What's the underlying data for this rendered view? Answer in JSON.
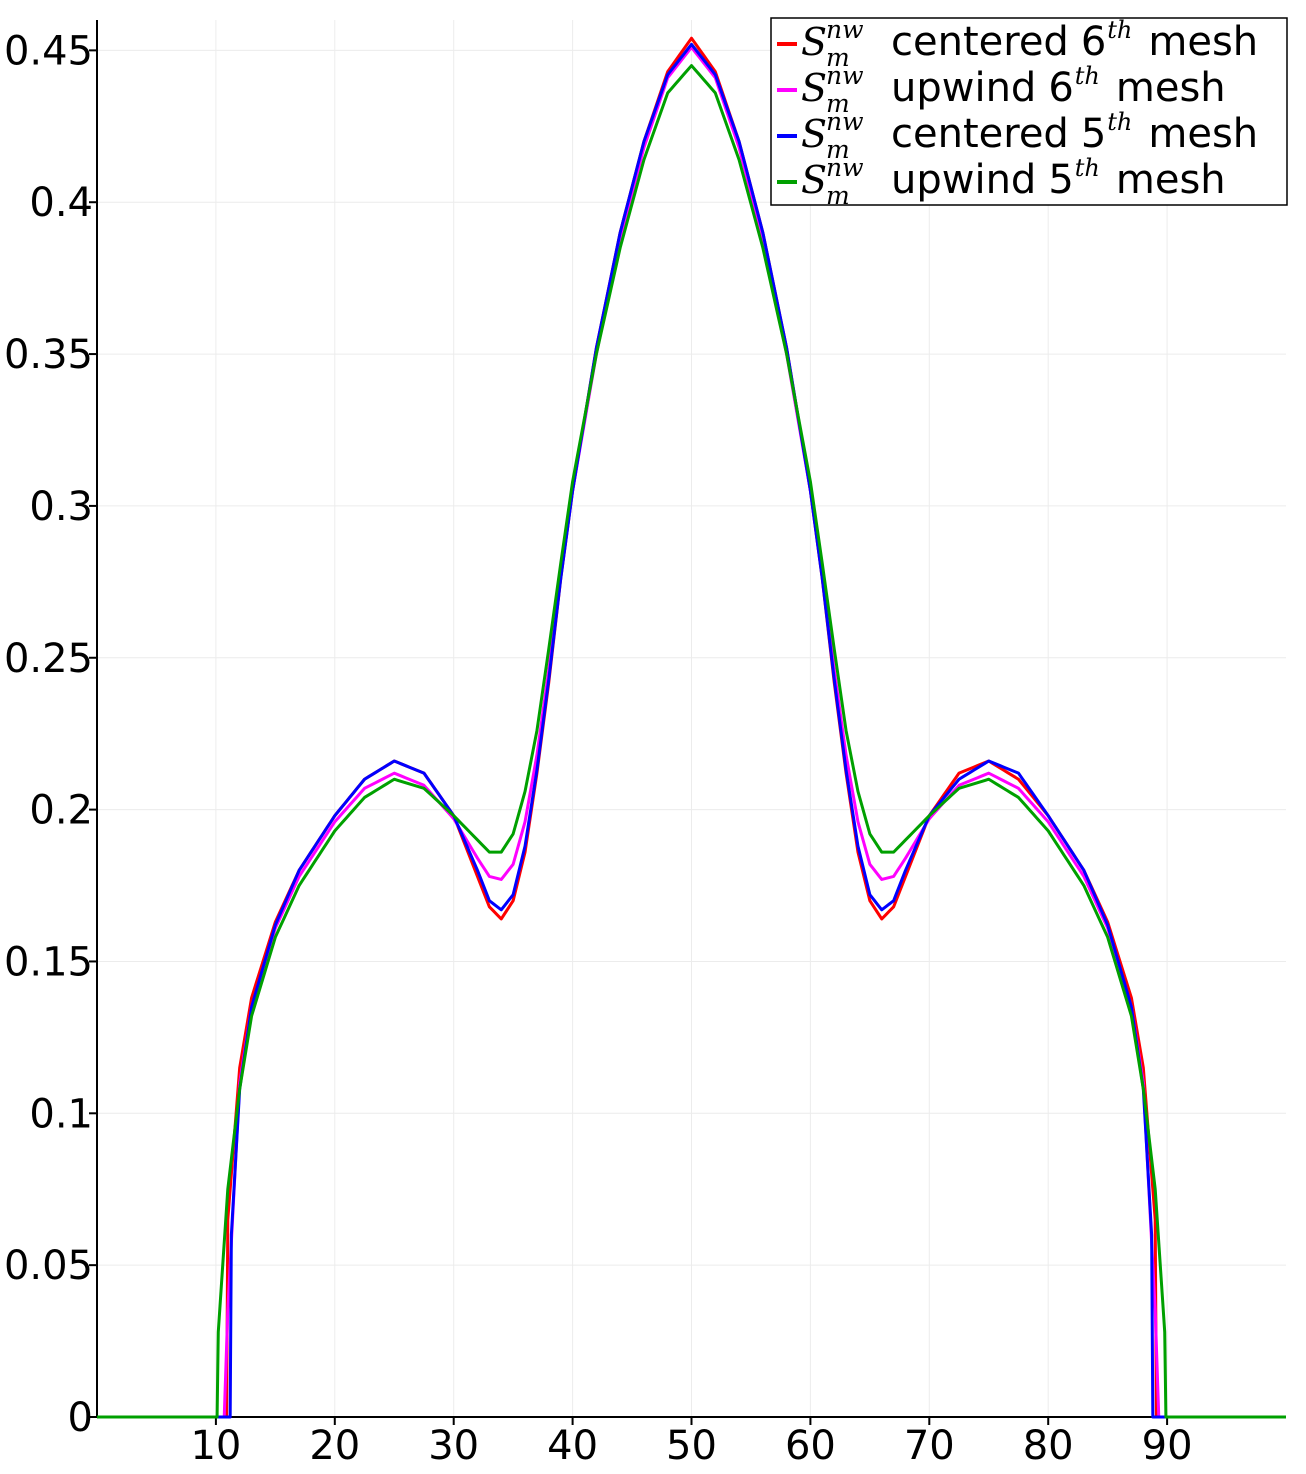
{
  "chart_data": {
    "type": "line",
    "title": "",
    "xlabel": "",
    "ylabel": "",
    "xlim": [
      0,
      100
    ],
    "ylim": [
      0,
      0.46
    ],
    "x_ticks": [
      10,
      20,
      30,
      40,
      50,
      60,
      70,
      80,
      90
    ],
    "x_tick_labels": [
      "10",
      "20",
      "30",
      "40",
      "50",
      "60",
      "70",
      "80",
      "90"
    ],
    "y_ticks": [
      0,
      0.05,
      0.1,
      0.15,
      0.2,
      0.25,
      0.3,
      0.35,
      0.4,
      0.45
    ],
    "y_tick_labels": [
      "0",
      "0.05",
      "0.1",
      "0.15",
      "0.2",
      "0.25",
      "0.3",
      "0.35",
      "0.4",
      "0.45"
    ],
    "grid": true,
    "legend_position": "top-right",
    "series": [
      {
        "name": "centered 6th mesh",
        "symbol": "S",
        "sup": "nw",
        "sub": "m",
        "order": "6",
        "order_sup": "th",
        "suffix": "mesh",
        "scheme": "centered",
        "color": "#ff0000",
        "points": [
          [
            0,
            0
          ],
          [
            10.9,
            0
          ],
          [
            11,
            0.065
          ],
          [
            12,
            0.115
          ],
          [
            13,
            0.138
          ],
          [
            15,
            0.163
          ],
          [
            17,
            0.18
          ],
          [
            20,
            0.198
          ],
          [
            22.5,
            0.21
          ],
          [
            25,
            0.216
          ],
          [
            27.5,
            0.212
          ],
          [
            30,
            0.198
          ],
          [
            32,
            0.178
          ],
          [
            33,
            0.168
          ],
          [
            34,
            0.164
          ],
          [
            35,
            0.17
          ],
          [
            36,
            0.186
          ],
          [
            37,
            0.212
          ],
          [
            38,
            0.242
          ],
          [
            39,
            0.276
          ],
          [
            40,
            0.305
          ],
          [
            42,
            0.352
          ],
          [
            44,
            0.39
          ],
          [
            46,
            0.42
          ],
          [
            48,
            0.443
          ],
          [
            50,
            0.454
          ],
          [
            52,
            0.443
          ],
          [
            54,
            0.42
          ],
          [
            56,
            0.39
          ],
          [
            58,
            0.352
          ],
          [
            60,
            0.305
          ],
          [
            61,
            0.276
          ],
          [
            62,
            0.242
          ],
          [
            63,
            0.212
          ],
          [
            64,
            0.186
          ],
          [
            65,
            0.17
          ],
          [
            66,
            0.164
          ],
          [
            67,
            0.168
          ],
          [
            68,
            0.178
          ],
          [
            70,
            0.198
          ],
          [
            72.5,
            0.212
          ],
          [
            75,
            0.216
          ],
          [
            77.5,
            0.21
          ],
          [
            80,
            0.198
          ],
          [
            83,
            0.18
          ],
          [
            85,
            0.163
          ],
          [
            87,
            0.138
          ],
          [
            88,
            0.115
          ],
          [
            89,
            0.065
          ],
          [
            89.1,
            0
          ],
          [
            100,
            0
          ]
        ]
      },
      {
        "name": "upwind 6th mesh",
        "symbol": "S",
        "sup": "nw",
        "sub": "m",
        "order": "6",
        "order_sup": "th",
        "suffix": "mesh",
        "scheme": "upwind",
        "color": "#ff00ff",
        "points": [
          [
            0,
            0
          ],
          [
            10.7,
            0
          ],
          [
            11,
            0.035
          ],
          [
            12,
            0.11
          ],
          [
            13,
            0.135
          ],
          [
            15,
            0.161
          ],
          [
            17,
            0.178
          ],
          [
            20,
            0.196
          ],
          [
            22.5,
            0.207
          ],
          [
            25,
            0.212
          ],
          [
            27.5,
            0.208
          ],
          [
            30,
            0.197
          ],
          [
            32,
            0.184
          ],
          [
            33,
            0.178
          ],
          [
            34,
            0.177
          ],
          [
            35,
            0.182
          ],
          [
            36,
            0.196
          ],
          [
            37,
            0.218
          ],
          [
            38,
            0.246
          ],
          [
            39,
            0.277
          ],
          [
            40,
            0.305
          ],
          [
            42,
            0.35
          ],
          [
            44,
            0.388
          ],
          [
            46,
            0.418
          ],
          [
            48,
            0.441
          ],
          [
            50,
            0.451
          ],
          [
            52,
            0.441
          ],
          [
            54,
            0.418
          ],
          [
            56,
            0.388
          ],
          [
            58,
            0.35
          ],
          [
            60,
            0.305
          ],
          [
            61,
            0.277
          ],
          [
            62,
            0.246
          ],
          [
            63,
            0.218
          ],
          [
            64,
            0.196
          ],
          [
            65,
            0.182
          ],
          [
            66,
            0.177
          ],
          [
            67,
            0.178
          ],
          [
            68,
            0.184
          ],
          [
            70,
            0.197
          ],
          [
            72.5,
            0.208
          ],
          [
            75,
            0.212
          ],
          [
            77.5,
            0.207
          ],
          [
            80,
            0.196
          ],
          [
            83,
            0.178
          ],
          [
            85,
            0.161
          ],
          [
            87,
            0.135
          ],
          [
            88,
            0.11
          ],
          [
            89,
            0.035
          ],
          [
            89.3,
            0
          ],
          [
            100,
            0
          ]
        ]
      },
      {
        "name": "centered 5th mesh",
        "symbol": "S",
        "sup": "nw",
        "sub": "m",
        "order": "5",
        "order_sup": "th",
        "suffix": "mesh",
        "scheme": "centered",
        "color": "#0000ff",
        "points": [
          [
            0,
            0
          ],
          [
            11.2,
            0
          ],
          [
            11.3,
            0.06
          ],
          [
            12,
            0.108
          ],
          [
            13,
            0.135
          ],
          [
            15,
            0.162
          ],
          [
            17,
            0.18
          ],
          [
            20,
            0.198
          ],
          [
            22.5,
            0.21
          ],
          [
            25,
            0.216
          ],
          [
            27.5,
            0.212
          ],
          [
            30,
            0.198
          ],
          [
            32,
            0.18
          ],
          [
            33,
            0.17
          ],
          [
            34,
            0.167
          ],
          [
            35,
            0.172
          ],
          [
            36,
            0.188
          ],
          [
            37,
            0.213
          ],
          [
            38,
            0.243
          ],
          [
            39,
            0.276
          ],
          [
            40,
            0.305
          ],
          [
            42,
            0.352
          ],
          [
            44,
            0.39
          ],
          [
            46,
            0.42
          ],
          [
            48,
            0.442
          ],
          [
            50,
            0.452
          ],
          [
            52,
            0.442
          ],
          [
            54,
            0.42
          ],
          [
            56,
            0.39
          ],
          [
            58,
            0.352
          ],
          [
            60,
            0.305
          ],
          [
            61,
            0.276
          ],
          [
            62,
            0.243
          ],
          [
            63,
            0.213
          ],
          [
            64,
            0.188
          ],
          [
            65,
            0.172
          ],
          [
            66,
            0.167
          ],
          [
            67,
            0.17
          ],
          [
            68,
            0.18
          ],
          [
            70,
            0.198
          ],
          [
            72.5,
            0.21
          ],
          [
            75,
            0.216
          ],
          [
            77.5,
            0.212
          ],
          [
            80,
            0.198
          ],
          [
            83,
            0.18
          ],
          [
            85,
            0.162
          ],
          [
            87,
            0.135
          ],
          [
            88,
            0.108
          ],
          [
            88.7,
            0.06
          ],
          [
            88.8,
            0
          ],
          [
            100,
            0
          ]
        ]
      },
      {
        "name": "upwind 5th mesh",
        "symbol": "S",
        "sup": "nw",
        "sub": "m",
        "order": "5",
        "order_sup": "th",
        "suffix": "mesh",
        "scheme": "upwind",
        "color": "#00a000",
        "points": [
          [
            0,
            0
          ],
          [
            10.1,
            0
          ],
          [
            10.2,
            0.028
          ],
          [
            11,
            0.075
          ],
          [
            12,
            0.108
          ],
          [
            13,
            0.132
          ],
          [
            15,
            0.158
          ],
          [
            17,
            0.175
          ],
          [
            20,
            0.193
          ],
          [
            22.5,
            0.204
          ],
          [
            25,
            0.21
          ],
          [
            27.5,
            0.207
          ],
          [
            30,
            0.198
          ],
          [
            32,
            0.19
          ],
          [
            33,
            0.186
          ],
          [
            34,
            0.186
          ],
          [
            35,
            0.192
          ],
          [
            36,
            0.206
          ],
          [
            37,
            0.226
          ],
          [
            38,
            0.253
          ],
          [
            39,
            0.281
          ],
          [
            40,
            0.308
          ],
          [
            42,
            0.35
          ],
          [
            44,
            0.385
          ],
          [
            46,
            0.414
          ],
          [
            48,
            0.436
          ],
          [
            50,
            0.445
          ],
          [
            52,
            0.436
          ],
          [
            54,
            0.414
          ],
          [
            56,
            0.385
          ],
          [
            58,
            0.35
          ],
          [
            60,
            0.308
          ],
          [
            61,
            0.281
          ],
          [
            62,
            0.253
          ],
          [
            63,
            0.226
          ],
          [
            64,
            0.206
          ],
          [
            65,
            0.192
          ],
          [
            66,
            0.186
          ],
          [
            67,
            0.186
          ],
          [
            68,
            0.19
          ],
          [
            70,
            0.198
          ],
          [
            72.5,
            0.207
          ],
          [
            75,
            0.21
          ],
          [
            77.5,
            0.204
          ],
          [
            80,
            0.193
          ],
          [
            83,
            0.175
          ],
          [
            85,
            0.158
          ],
          [
            87,
            0.132
          ],
          [
            88,
            0.108
          ],
          [
            89,
            0.075
          ],
          [
            89.8,
            0.028
          ],
          [
            89.9,
            0
          ],
          [
            100,
            0
          ]
        ]
      }
    ]
  }
}
